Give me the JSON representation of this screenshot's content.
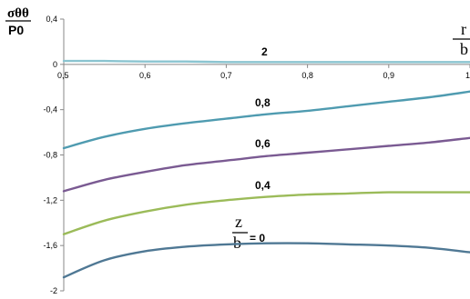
{
  "chart_data": {
    "type": "line",
    "ylabel_num": "σθθ",
    "ylabel_den": "P0",
    "xlabel_num": "r",
    "xlabel_den": "b",
    "z_label_num": "z",
    "z_label_den": "b",
    "z_label_eq": "= 0",
    "xlim": [
      0.5,
      1.0
    ],
    "ylim": [
      -2,
      0.4
    ],
    "x_ticks": [
      "0,5",
      "0,6",
      "0,7",
      "0,8",
      "0,9",
      "1"
    ],
    "y_ticks": [
      "0,4",
      "0",
      "-0,4",
      "-0,8",
      "-1,2",
      "-1,6",
      "-2"
    ],
    "x_tick_values": [
      0.5,
      0.6,
      0.7,
      0.8,
      0.9,
      1.0
    ],
    "y_tick_values": [
      0.4,
      0,
      -0.4,
      -0.8,
      -1.2,
      -1.6,
      -2
    ],
    "x": [
      0.5,
      0.55,
      0.6,
      0.65,
      0.7,
      0.75,
      0.8,
      0.85,
      0.9,
      0.95,
      1.0
    ],
    "series": [
      {
        "name": "2",
        "color": "#8ac4d0",
        "values": [
          0.03,
          0.03,
          0.025,
          0.025,
          0.02,
          0.02,
          0.02,
          0.02,
          0.02,
          0.02,
          0.02
        ]
      },
      {
        "name": "0,8",
        "color": "#4f9bb0",
        "values": [
          -0.74,
          -0.64,
          -0.57,
          -0.52,
          -0.48,
          -0.44,
          -0.41,
          -0.37,
          -0.33,
          -0.29,
          -0.24
        ]
      },
      {
        "name": "0,6",
        "color": "#7a5a92",
        "values": [
          -1.12,
          -1.02,
          -0.95,
          -0.89,
          -0.85,
          -0.81,
          -0.78,
          -0.75,
          -0.72,
          -0.69,
          -0.65
        ]
      },
      {
        "name": "0,4",
        "color": "#9bbb59",
        "values": [
          -1.5,
          -1.38,
          -1.3,
          -1.24,
          -1.2,
          -1.17,
          -1.15,
          -1.14,
          -1.13,
          -1.13,
          -1.13
        ]
      },
      {
        "name": "0",
        "color": "#4f7894",
        "values": [
          -1.88,
          -1.73,
          -1.65,
          -1.61,
          -1.59,
          -1.58,
          -1.58,
          -1.59,
          -1.6,
          -1.62,
          -1.66
        ]
      }
    ],
    "series_labels": [
      "2",
      "0,8",
      "0,6",
      "0,4"
    ],
    "grid": false,
    "legend": "none"
  }
}
